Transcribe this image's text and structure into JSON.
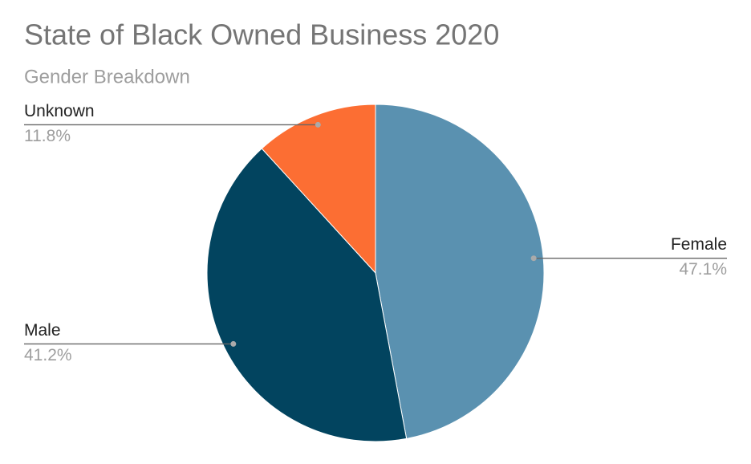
{
  "chart_data": {
    "type": "pie",
    "title": "State of Black Owned Business 2020",
    "subtitle": "Gender Breakdown",
    "categories": [
      "Female",
      "Male",
      "Unknown"
    ],
    "values": [
      47.1,
      41.2,
      11.8
    ],
    "value_labels": [
      "47.1%",
      "41.2%",
      "11.8%"
    ],
    "colors": [
      "#5a91b0",
      "#02445f",
      "#fc6e33"
    ]
  }
}
